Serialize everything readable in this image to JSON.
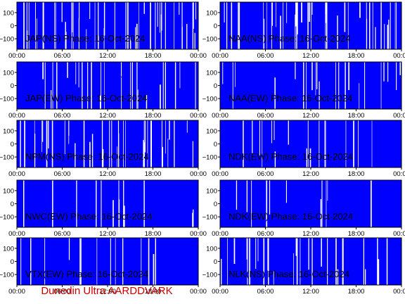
{
  "footer": {
    "text": "Dunedin Ultra AARDDVARK",
    "color": "#cc0000"
  },
  "colors": {
    "plot_fill": "#0000ff",
    "gap": "#ffffff",
    "axis": "#000000",
    "label": "#000000"
  },
  "chart_data": [
    {
      "type": "area",
      "title": "JAP(NS) Phase: 16-Oct-2024",
      "xlabel": "",
      "ylabel": "",
      "x_ticks": [
        "00:00",
        "06:00",
        "12:00",
        "18:00",
        "00:00"
      ],
      "y_ticks": [
        100,
        0,
        -100
      ],
      "xlim": [
        0,
        24
      ],
      "ylim": [
        -180,
        180
      ],
      "dropout_density": 0.55
    },
    {
      "type": "area",
      "title": "NAA(NS) Phase: 16-Oct-2024",
      "xlabel": "",
      "ylabel": "",
      "x_ticks": [
        "00:00",
        "06:00",
        "12:00",
        "18:00",
        "00:00"
      ],
      "y_ticks": [
        100,
        0,
        -100
      ],
      "xlim": [
        0,
        24
      ],
      "ylim": [
        -180,
        180
      ],
      "dropout_density": 0.5
    },
    {
      "type": "area",
      "title": "JAP(EW) Phase: 16-Oct-2024",
      "xlabel": "",
      "ylabel": "",
      "x_ticks": [
        "00:00",
        "06:00",
        "12:00",
        "18:00",
        "00:00"
      ],
      "y_ticks": [
        100,
        0,
        -100
      ],
      "xlim": [
        0,
        24
      ],
      "ylim": [
        -180,
        180
      ],
      "dropout_density": 0.3
    },
    {
      "type": "area",
      "title": "NAA(EW) Phase: 16-Oct-2024",
      "xlabel": "",
      "ylabel": "",
      "x_ticks": [
        "00:00",
        "06:00",
        "12:00",
        "18:00",
        "00:00"
      ],
      "y_ticks": [
        100,
        0,
        -100
      ],
      "xlim": [
        0,
        24
      ],
      "ylim": [
        -180,
        180
      ],
      "dropout_density": 0.25
    },
    {
      "type": "area",
      "title": "NPM(NS) Phase: 16-Oct-2024",
      "xlabel": "",
      "ylabel": "",
      "x_ticks": [
        "00:00",
        "06:00",
        "12:00",
        "18:00",
        "00:00"
      ],
      "y_ticks": [
        100,
        0,
        -100
      ],
      "xlim": [
        0,
        24
      ],
      "ylim": [
        -180,
        180
      ],
      "dropout_density": 0.45
    },
    {
      "type": "area",
      "title": "NDK(EW) Phase: 16-Oct-2024",
      "xlabel": "",
      "ylabel": "",
      "x_ticks": [
        "00:00",
        "06:00",
        "12:00",
        "18:00",
        "00:00"
      ],
      "y_ticks": [
        100,
        0,
        -100
      ],
      "xlim": [
        0,
        24
      ],
      "ylim": [
        -180,
        180
      ],
      "dropout_density": 0.2
    },
    {
      "type": "area",
      "title": "NWC(EW) Phase: 16-Oct-2024",
      "xlabel": "",
      "ylabel": "",
      "x_ticks": [
        "00:00",
        "06:00",
        "12:00",
        "18:00",
        "00:00"
      ],
      "y_ticks": [
        100,
        0,
        -100
      ],
      "xlim": [
        0,
        24
      ],
      "ylim": [
        -180,
        180
      ],
      "dropout_density": 0.15
    },
    {
      "type": "area",
      "title": "NDK(EW) Phase: 16-Oct-2024",
      "xlabel": "",
      "ylabel": "",
      "x_ticks": [
        "00:00",
        "06:00",
        "12:00",
        "18:00",
        "00:00"
      ],
      "y_ticks": [
        100,
        0,
        -100
      ],
      "xlim": [
        0,
        24
      ],
      "ylim": [
        -180,
        180
      ],
      "dropout_density": 0.12
    },
    {
      "type": "area",
      "title": "VTX(EW) Phase: 16-Oct-2024",
      "xlabel": "",
      "ylabel": "",
      "x_ticks": [
        "00:00",
        "06:00",
        "12:00",
        "18:00",
        "00:00"
      ],
      "y_ticks": [
        100,
        0,
        -100
      ],
      "xlim": [
        0,
        24
      ],
      "ylim": [
        -180,
        180
      ],
      "dropout_density": 0.15
    },
    {
      "type": "area",
      "title": "NLK(NS) Phase: 16-Oct-2024",
      "xlabel": "",
      "ylabel": "",
      "x_ticks": [
        "00:00",
        "06:00",
        "12:00",
        "18:00",
        "00:00"
      ],
      "y_ticks": [
        100,
        0,
        -100
      ],
      "xlim": [
        0,
        24
      ],
      "ylim": [
        -180,
        180
      ],
      "dropout_density": 0.35
    }
  ]
}
